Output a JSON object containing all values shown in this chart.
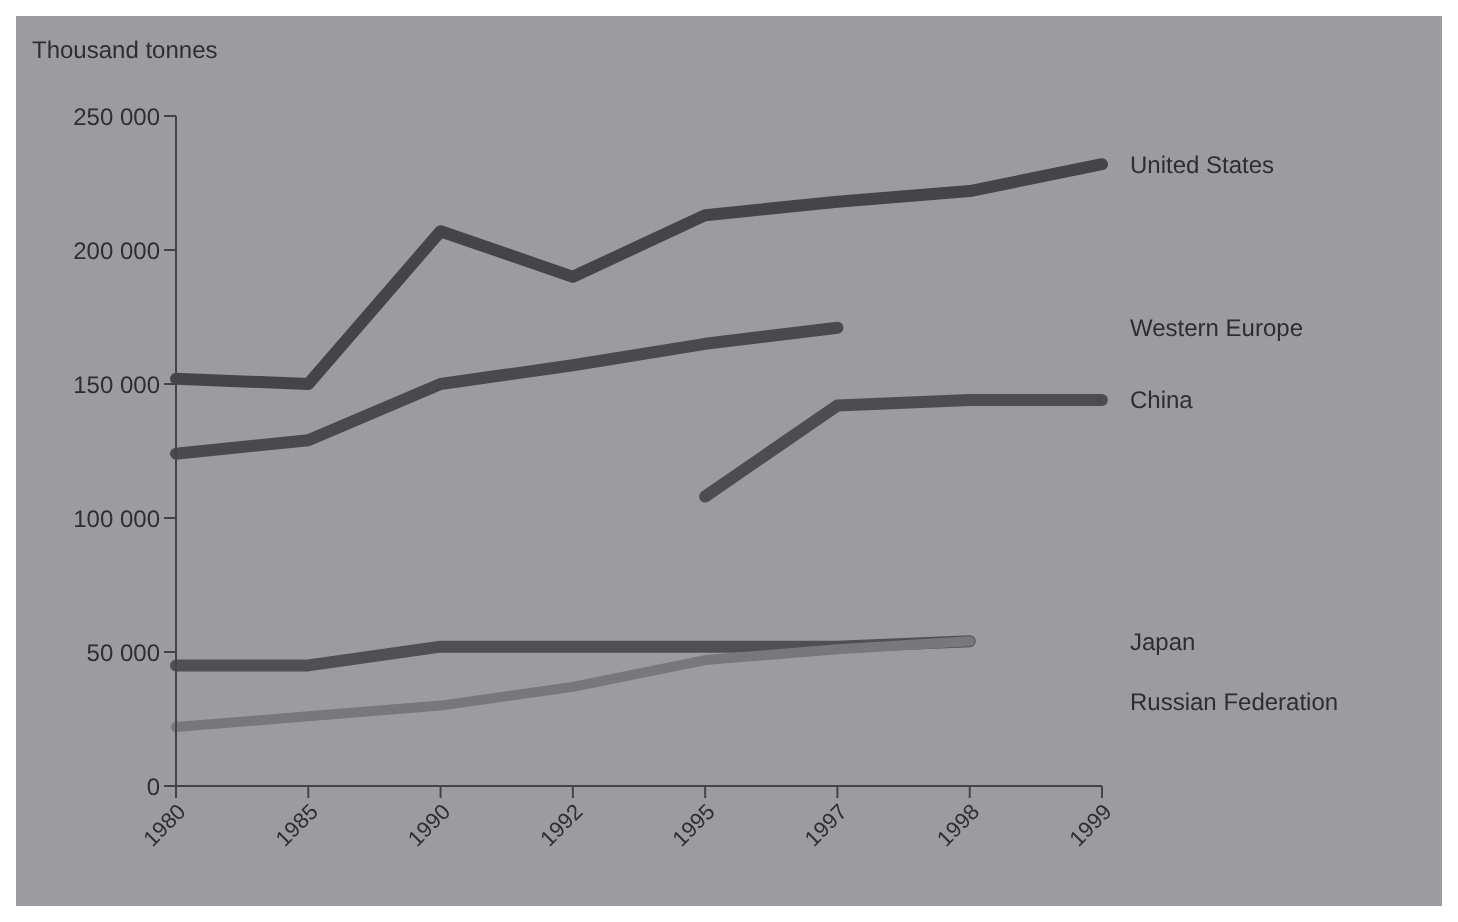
{
  "chart_data": {
    "type": "line",
    "ylabel": "Thousand tonnes",
    "categories": [
      "1980",
      "1985",
      "1990",
      "1992",
      "1995",
      "1997",
      "1998",
      "1999"
    ],
    "ylim": [
      0,
      250000
    ],
    "yticks": [
      {
        "value": 0,
        "label": "0"
      },
      {
        "value": 50000,
        "label": "50 000"
      },
      {
        "value": 100000,
        "label": "100 000"
      },
      {
        "value": 150000,
        "label": "150 000"
      },
      {
        "value": 200000,
        "label": "200 000"
      },
      {
        "value": 250000,
        "label": "250 000"
      }
    ],
    "grid": false,
    "marker": "none",
    "line_style": "solid",
    "series": [
      {
        "name": "United States",
        "color": "#454548",
        "values": [
          152000,
          150000,
          207000,
          190000,
          213000,
          218000,
          222000,
          232000
        ]
      },
      {
        "name": "Western Europe",
        "color": "#4a4a4d",
        "values": [
          124000,
          129000,
          150000,
          157000,
          165000,
          171000,
          null,
          null
        ]
      },
      {
        "name": "China",
        "color": "#4d4d50",
        "values": [
          null,
          null,
          null,
          null,
          108000,
          142000,
          144000,
          144000
        ]
      },
      {
        "name": "Japan",
        "color": "#505053",
        "values": [
          45000,
          45000,
          52000,
          52000,
          52000,
          52000,
          54000,
          null
        ]
      },
      {
        "name": "Russian Federation",
        "color": "#78787c",
        "values": [
          22000,
          26000,
          30000,
          37000,
          47000,
          51000,
          54000,
          null
        ]
      }
    ]
  }
}
